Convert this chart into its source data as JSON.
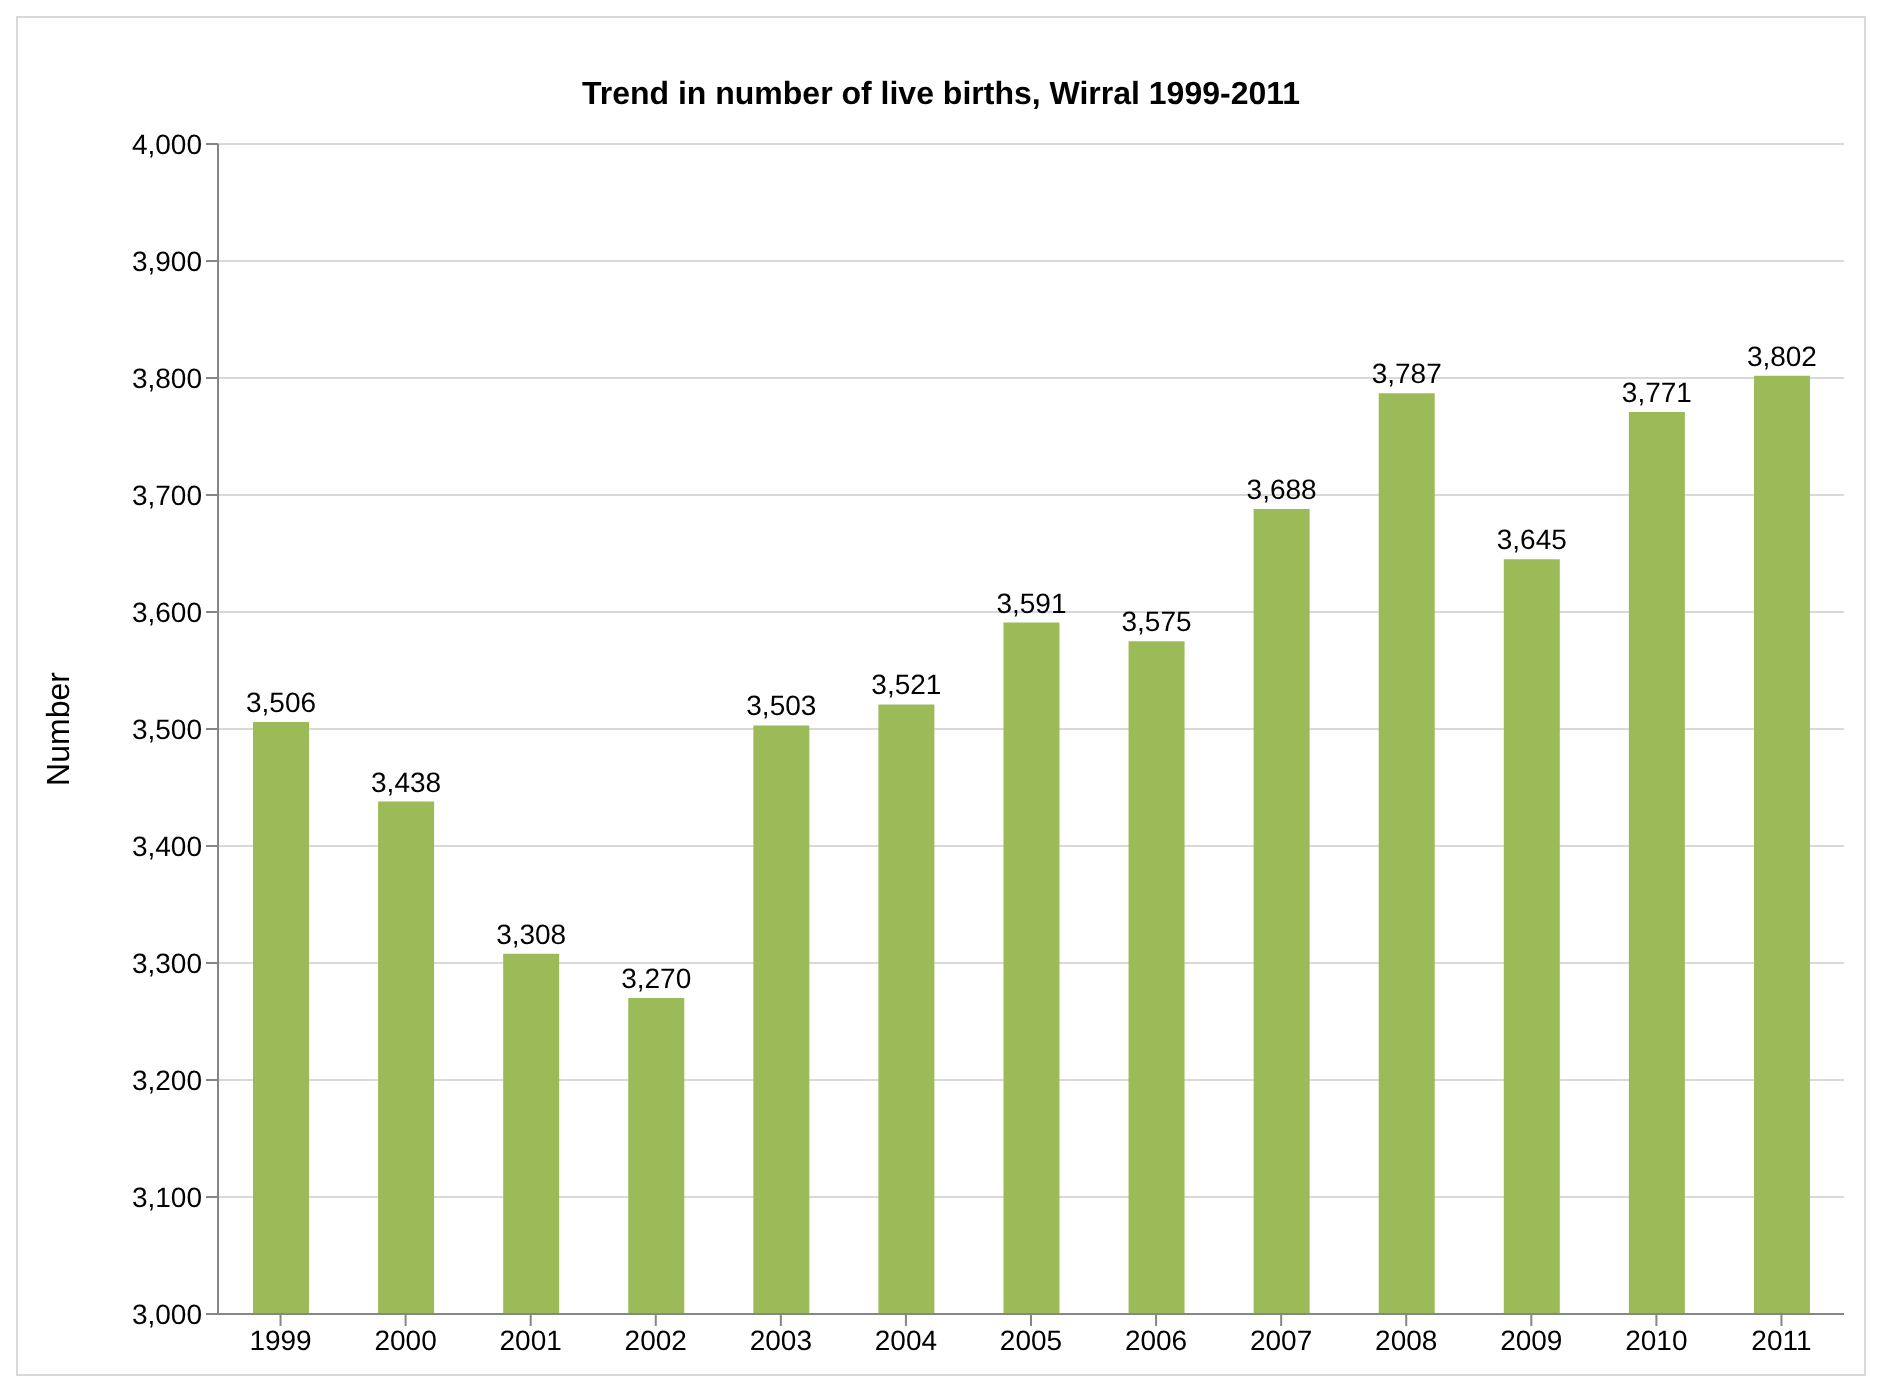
{
  "chart_data": {
    "type": "bar",
    "title": "Trend in number of live births, Wirral 1999-2011",
    "ylabel": "Number",
    "categories": [
      "1999",
      "2000",
      "2001",
      "2002",
      "2003",
      "2004",
      "2005",
      "2006",
      "2007",
      "2008",
      "2009",
      "2010",
      "2011"
    ],
    "values": [
      3506,
      3438,
      3308,
      3270,
      3503,
      3521,
      3591,
      3575,
      3688,
      3787,
      3645,
      3771,
      3802
    ],
    "value_labels": [
      "3,506",
      "3,438",
      "3,308",
      "3,270",
      "3,503",
      "3,521",
      "3,591",
      "3,575",
      "3,688",
      "3,787",
      "3,645",
      "3,771",
      "3,802"
    ],
    "color": "#9bbb59",
    "ylim": [
      3000,
      4000
    ],
    "yticks": [
      {
        "value": 3000,
        "label": "3,000"
      },
      {
        "value": 3100,
        "label": "3,100"
      },
      {
        "value": 3200,
        "label": "3,200"
      },
      {
        "value": 3300,
        "label": "3,300"
      },
      {
        "value": 3400,
        "label": "3,400"
      },
      {
        "value": 3500,
        "label": "3,500"
      },
      {
        "value": 3600,
        "label": "3,600"
      },
      {
        "value": 3700,
        "label": "3,700"
      },
      {
        "value": 3800,
        "label": "3,800"
      },
      {
        "value": 3900,
        "label": "3,900"
      },
      {
        "value": 4000,
        "label": "4,000"
      }
    ],
    "grid": "y"
  }
}
